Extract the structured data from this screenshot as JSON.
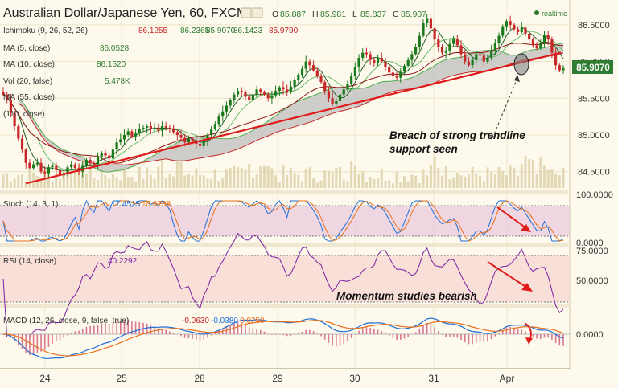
{
  "header": {
    "symbol_title": "Australian Dollar/Japanese Yen, 60, FXCM",
    "ohlc": [
      {
        "k": "O",
        "v": "85.887"
      },
      {
        "k": "H",
        "v": "85.981"
      },
      {
        "k": "L",
        "v": "85.837"
      },
      {
        "k": "C",
        "v": "85.907"
      }
    ],
    "realtime_label": "realtime"
  },
  "indicators": [
    {
      "name": "Ichimoku (9, 26, 52, 26)",
      "values": [
        "86.1255",
        "86.2365",
        "85.9070",
        "86.1423",
        "85.9790"
      ],
      "colors": [
        "#c62828",
        "#2e7d32",
        "#2e7d32",
        "#2e7d32",
        "#c62828"
      ]
    },
    {
      "name": "MA (5, close)",
      "values": [
        "86.0528"
      ],
      "colors": [
        "#2e7d32"
      ]
    },
    {
      "name": "MA (10, close)",
      "values": [
        "86.1520"
      ],
      "colors": [
        "#2e7d32"
      ]
    },
    {
      "name": "Vol (20, false)",
      "values": [
        "5.478K"
      ],
      "colors": [
        "#2e7d32"
      ]
    },
    {
      "name": "MA (55, close)",
      "values": [],
      "colors": []
    },
    {
      "name": "(110, close)",
      "values": [],
      "colors": []
    }
  ],
  "price_badge": "85.9070",
  "annotations": {
    "breach": [
      "Breach of strong trendline",
      "support seen"
    ],
    "momentum": "Momentum studies bearish"
  },
  "stoch": {
    "label": "Stoch (14, 3, 1)",
    "values": [
      "17.4515",
      "18.6738"
    ],
    "colors": [
      "#1e6fd9",
      "#e8701a"
    ],
    "axis": [
      "100.0000",
      "0.0000"
    ]
  },
  "rsi": {
    "label": "RSI (14, close)",
    "value": "40.2292",
    "axis": [
      "75.0000",
      "50.0000"
    ]
  },
  "macd": {
    "label": "MACD (12, 26, close, 9, false, true)",
    "values": [
      "-0.0630",
      "-0.0380",
      "0.0250"
    ],
    "colors": [
      "#c62828",
      "#1e6fd9",
      "#e8701a"
    ],
    "axis": [
      "0.0000"
    ]
  },
  "chart_data": {
    "type": "candlestick",
    "symbol": "AUD/JPY",
    "timeframe": "60",
    "y_ticks": [
      "86.5000",
      "86.0000",
      "85.5000",
      "85.0000",
      "84.5000"
    ],
    "y_tick_values": [
      86.5,
      86.0,
      85.5,
      85.0,
      84.5
    ],
    "x_ticks": [
      "24",
      "25",
      "28",
      "29",
      "30",
      "31",
      "Apr"
    ],
    "ylim": [
      84.3,
      86.75
    ],
    "trendline": {
      "from": [
        0.04,
        84.34
      ],
      "to": [
        0.985,
        86.12
      ]
    },
    "close": [
      85.55,
      85.48,
      85.3,
      85.12,
      84.95,
      84.8,
      84.62,
      84.55,
      84.6,
      84.62,
      84.5,
      84.48,
      84.56,
      84.58,
      84.52,
      84.45,
      84.48,
      84.56,
      84.6,
      84.55,
      84.5,
      84.58,
      84.66,
      84.62,
      84.6,
      84.7,
      84.76,
      84.72,
      84.68,
      84.8,
      84.9,
      84.94,
      85.0,
      85.05,
      84.98,
      85.02,
      85.08,
      85.1,
      85.12,
      85.08,
      85.1,
      85.06,
      85.12,
      85.1,
      85.08,
      85.04,
      85.0,
      84.96,
      84.9,
      84.95,
      84.92,
      84.88,
      84.85,
      84.92,
      85.0,
      85.08,
      85.15,
      85.25,
      85.32,
      85.4,
      85.48,
      85.55,
      85.6,
      85.58,
      85.52,
      85.48,
      85.55,
      85.62,
      85.58,
      85.55,
      85.5,
      85.54,
      85.6,
      85.65,
      85.62,
      85.58,
      85.66,
      85.75,
      85.82,
      85.9,
      86.0,
      85.95,
      85.88,
      85.8,
      85.72,
      85.6,
      85.5,
      85.42,
      85.46,
      85.55,
      85.62,
      85.7,
      85.8,
      85.92,
      86.05,
      86.12,
      86.1,
      86.02,
      85.98,
      86.05,
      86.0,
      85.92,
      85.85,
      85.8,
      85.78,
      85.86,
      85.94,
      86.02,
      86.1,
      86.2,
      86.35,
      86.52,
      86.58,
      86.45,
      86.3,
      86.2,
      86.12,
      86.15,
      86.24,
      86.3,
      86.22,
      86.1,
      86.0,
      85.95,
      86.02,
      86.1,
      86.08,
      86.0,
      86.05,
      86.15,
      86.25,
      86.35,
      86.48,
      86.55,
      86.5,
      86.44,
      86.4,
      86.46,
      86.38,
      86.3,
      86.22,
      86.18,
      86.25,
      86.36,
      86.3,
      86.12,
      85.95,
      85.88,
      85.91
    ]
  }
}
